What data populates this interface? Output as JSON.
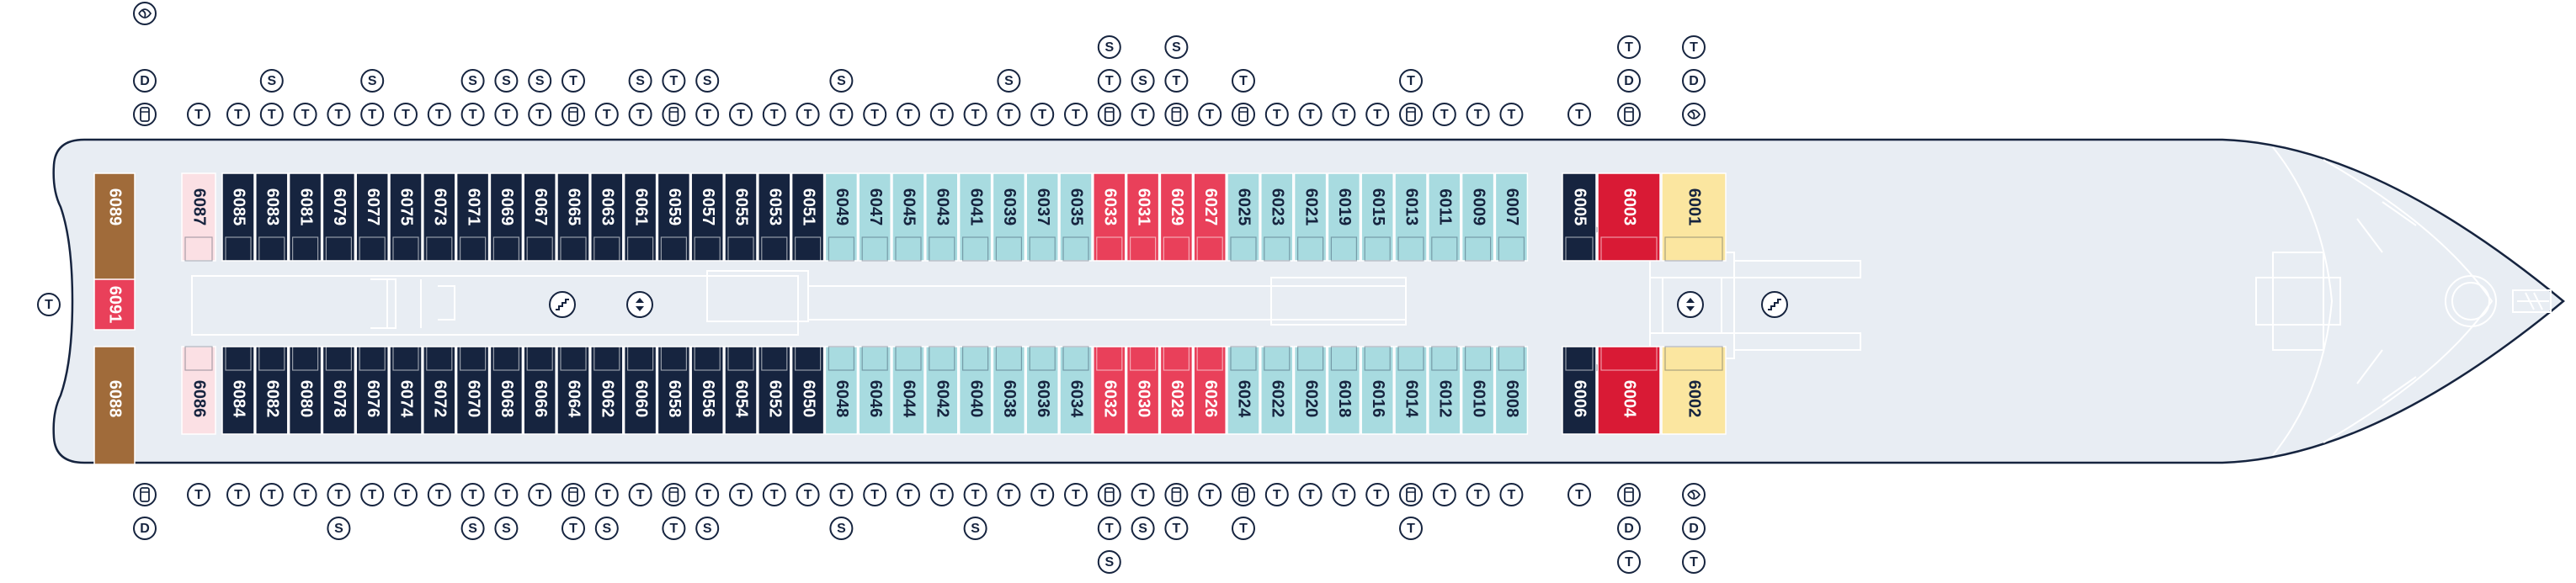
{
  "colors": {
    "navy": "#16243f",
    "light_blue": "#a8dbe0",
    "pink": "#e9405a",
    "red": "#d91a35",
    "yellow": "#fbe6a0",
    "brown": "#a06b3a",
    "corridor": "#e8edf3",
    "hull_fill": "#e8edf3",
    "hull_stroke": "#16243f",
    "detail": "#ffffff",
    "icon_stroke": "#16243f"
  },
  "cabins": {
    "top": [
      {
        "num": "6089",
        "type": "brown"
      },
      {
        "num": "6087",
        "type": "lightpink"
      },
      {
        "num": "6085",
        "type": "navy"
      },
      {
        "num": "6083",
        "type": "navy"
      },
      {
        "num": "6081",
        "type": "navy"
      },
      {
        "num": "6079",
        "type": "navy"
      },
      {
        "num": "6077",
        "type": "navy"
      },
      {
        "num": "6075",
        "type": "navy"
      },
      {
        "num": "6073",
        "type": "navy"
      },
      {
        "num": "6071",
        "type": "navy"
      },
      {
        "num": "6069",
        "type": "navy"
      },
      {
        "num": "6067",
        "type": "navy"
      },
      {
        "num": "6065",
        "type": "navy"
      },
      {
        "num": "6063",
        "type": "navy"
      },
      {
        "num": "6061",
        "type": "navy"
      },
      {
        "num": "6059",
        "type": "navy"
      },
      {
        "num": "6057",
        "type": "navy"
      },
      {
        "num": "6055",
        "type": "navy"
      },
      {
        "num": "6053",
        "type": "navy"
      },
      {
        "num": "6051",
        "type": "navy"
      },
      {
        "num": "6049",
        "type": "light"
      },
      {
        "num": "6047",
        "type": "light"
      },
      {
        "num": "6045",
        "type": "light"
      },
      {
        "num": "6043",
        "type": "light"
      },
      {
        "num": "6041",
        "type": "light"
      },
      {
        "num": "6039",
        "type": "light"
      },
      {
        "num": "6037",
        "type": "light"
      },
      {
        "num": "6035",
        "type": "light"
      },
      {
        "num": "6033",
        "type": "pink"
      },
      {
        "num": "6031",
        "type": "pink"
      },
      {
        "num": "6029",
        "type": "pink"
      },
      {
        "num": "6027",
        "type": "pink"
      },
      {
        "num": "6025",
        "type": "light"
      },
      {
        "num": "6023",
        "type": "light"
      },
      {
        "num": "6021",
        "type": "light"
      },
      {
        "num": "6019",
        "type": "light"
      },
      {
        "num": "6015",
        "type": "light"
      },
      {
        "num": "6013",
        "type": "light"
      },
      {
        "num": "6011",
        "type": "light"
      },
      {
        "num": "6009",
        "type": "light"
      },
      {
        "num": "6007",
        "type": "light"
      },
      {
        "num": "6005",
        "type": "navy"
      },
      {
        "num": "6003",
        "type": "red"
      },
      {
        "num": "6001",
        "type": "yellow"
      }
    ],
    "middle": {
      "num": "6091",
      "type": "pink"
    },
    "bottom": [
      {
        "num": "6088",
        "type": "brown"
      },
      {
        "num": "6086",
        "type": "lightpink"
      },
      {
        "num": "6084",
        "type": "navy"
      },
      {
        "num": "6082",
        "type": "navy"
      },
      {
        "num": "6080",
        "type": "navy"
      },
      {
        "num": "6078",
        "type": "navy"
      },
      {
        "num": "6076",
        "type": "navy"
      },
      {
        "num": "6074",
        "type": "navy"
      },
      {
        "num": "6072",
        "type": "navy"
      },
      {
        "num": "6070",
        "type": "navy"
      },
      {
        "num": "6068",
        "type": "navy"
      },
      {
        "num": "6066",
        "type": "navy"
      },
      {
        "num": "6064",
        "type": "navy"
      },
      {
        "num": "6062",
        "type": "navy"
      },
      {
        "num": "6060",
        "type": "navy"
      },
      {
        "num": "6058",
        "type": "navy"
      },
      {
        "num": "6056",
        "type": "navy"
      },
      {
        "num": "6054",
        "type": "navy"
      },
      {
        "num": "6052",
        "type": "navy"
      },
      {
        "num": "6050",
        "type": "navy"
      },
      {
        "num": "6048",
        "type": "light"
      },
      {
        "num": "6046",
        "type": "light"
      },
      {
        "num": "6044",
        "type": "light"
      },
      {
        "num": "6042",
        "type": "light"
      },
      {
        "num": "6040",
        "type": "light"
      },
      {
        "num": "6038",
        "type": "light"
      },
      {
        "num": "6036",
        "type": "light"
      },
      {
        "num": "6034",
        "type": "light"
      },
      {
        "num": "6032",
        "type": "pink"
      },
      {
        "num": "6030",
        "type": "pink"
      },
      {
        "num": "6028",
        "type": "pink"
      },
      {
        "num": "6026",
        "type": "pink"
      },
      {
        "num": "6024",
        "type": "light"
      },
      {
        "num": "6022",
        "type": "light"
      },
      {
        "num": "6020",
        "type": "light"
      },
      {
        "num": "6018",
        "type": "light"
      },
      {
        "num": "6016",
        "type": "light"
      },
      {
        "num": "6014",
        "type": "light"
      },
      {
        "num": "6012",
        "type": "light"
      },
      {
        "num": "6010",
        "type": "light"
      },
      {
        "num": "6008",
        "type": "light"
      },
      {
        "num": "6006",
        "type": "navy"
      },
      {
        "num": "6004",
        "type": "red"
      },
      {
        "num": "6002",
        "type": "yellow"
      }
    ]
  },
  "icons_top": [
    [
      "D",
      "bed"
    ],
    [
      "T"
    ],
    [
      "T"
    ],
    [
      "S",
      "T"
    ],
    [
      "T"
    ],
    [
      "T"
    ],
    [
      "S",
      "T"
    ],
    [
      "T"
    ],
    [
      "T"
    ],
    [
      "S",
      "T"
    ],
    [
      "S",
      "T"
    ],
    [
      "S",
      "T"
    ],
    [
      "T",
      "bed"
    ],
    [
      "T"
    ],
    [
      "S",
      "T"
    ],
    [
      "T",
      "bed"
    ],
    [
      "S",
      "T"
    ],
    [
      "T"
    ],
    [
      "T"
    ],
    [
      "T"
    ],
    [
      "S",
      "T"
    ],
    [
      "T"
    ],
    [
      "T"
    ],
    [
      "T"
    ],
    [
      "T"
    ],
    [
      "S",
      "T"
    ],
    [
      "T"
    ],
    [
      "T"
    ],
    [
      "S",
      "T",
      "bed"
    ],
    [
      "S",
      "T"
    ],
    [
      "S",
      "T",
      "bed"
    ],
    [
      "T"
    ],
    [
      "T",
      "bed"
    ],
    [
      "T"
    ],
    [
      "T"
    ],
    [
      "T"
    ],
    [
      "T"
    ],
    [
      "T",
      "bed"
    ],
    [
      "T"
    ],
    [
      "T"
    ],
    [
      "T"
    ],
    [
      "T"
    ],
    [
      "T",
      "D",
      "bed"
    ],
    [
      "T",
      "D",
      "bath"
    ]
  ],
  "icons_top_first": [
    "bath"
  ],
  "icons_bottom": [
    [
      "bed",
      "D"
    ],
    [
      "T"
    ],
    [
      "T"
    ],
    [
      "T"
    ],
    [
      "T"
    ],
    [
      "T",
      "S"
    ],
    [
      "T"
    ],
    [
      "T"
    ],
    [
      "T"
    ],
    [
      "T",
      "S"
    ],
    [
      "T",
      "S"
    ],
    [
      "T"
    ],
    [
      "bed",
      "T"
    ],
    [
      "T",
      "S"
    ],
    [
      "T"
    ],
    [
      "bed",
      "T"
    ],
    [
      "T",
      "S"
    ],
    [
      "T"
    ],
    [
      "T"
    ],
    [
      "T"
    ],
    [
      "T",
      "S"
    ],
    [
      "T"
    ],
    [
      "T"
    ],
    [
      "T"
    ],
    [
      "T",
      "S"
    ],
    [
      "T"
    ],
    [
      "T"
    ],
    [
      "T"
    ],
    [
      "bed",
      "T",
      "S"
    ],
    [
      "T",
      "S"
    ],
    [
      "bed",
      "T"
    ],
    [
      "T"
    ],
    [
      "bed",
      "T"
    ],
    [
      "T"
    ],
    [
      "T"
    ],
    [
      "T"
    ],
    [
      "T"
    ],
    [
      "bed",
      "T"
    ],
    [
      "T"
    ],
    [
      "T"
    ],
    [
      "T"
    ],
    [
      "T"
    ],
    [
      "bed",
      "D",
      "T"
    ],
    [
      "bath",
      "D",
      "T"
    ]
  ],
  "icons_bottom_first": [
    "bath"
  ],
  "stern_icon": "T",
  "markers": {
    "stairs": "stairs-icon",
    "elevator": "elevator-icon"
  }
}
